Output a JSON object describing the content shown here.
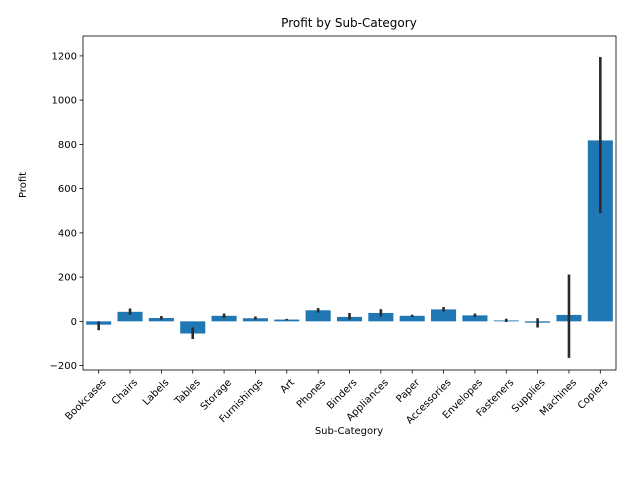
{
  "chart_data": {
    "type": "bar",
    "title": "Profit by Sub-Category",
    "xlabel": "Sub-Category",
    "ylabel": "Profit",
    "ylim": [
      -220,
      1290
    ],
    "yticks": [
      -200,
      0,
      200,
      400,
      600,
      800,
      1000,
      1200
    ],
    "grid": false,
    "legend": "none",
    "bar_color": "#1f77b4",
    "errorbar_color": "#2a2a2a",
    "categories": [
      "Bookcases",
      "Chairs",
      "Labels",
      "Tables",
      "Storage",
      "Furnishings",
      "Art",
      "Phones",
      "Binders",
      "Appliances",
      "Paper",
      "Accessories",
      "Envelopes",
      "Fasteners",
      "Supplies",
      "Machines",
      "Copiers"
    ],
    "values": [
      -15,
      43,
      15,
      -55,
      25,
      14,
      8,
      50,
      20,
      38,
      25,
      54,
      27,
      4,
      -6,
      29,
      818
    ],
    "ci_low": [
      -40,
      30,
      8,
      -80,
      15,
      8,
      5,
      40,
      8,
      22,
      20,
      45,
      20,
      -3,
      -28,
      -165,
      490
    ],
    "ci_high": [
      0,
      58,
      24,
      -28,
      35,
      22,
      11,
      60,
      38,
      55,
      30,
      65,
      35,
      12,
      14,
      212,
      1195
    ]
  }
}
